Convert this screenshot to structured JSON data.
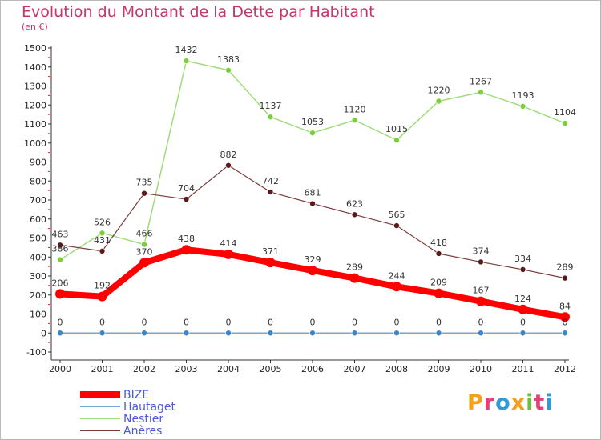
{
  "title": "Evolution du Montant de la Dette par Habitant",
  "subtitle": "(en €)",
  "brand": {
    "text": "Proxiti",
    "letters": [
      {
        "char": "P",
        "color": "#f2a21a"
      },
      {
        "char": "r",
        "color": "#e2407a"
      },
      {
        "char": "o",
        "color": "#2f9ad6"
      },
      {
        "char": "x",
        "color": "#f2a21a"
      },
      {
        "char": "i",
        "color": "#6cbf3c"
      },
      {
        "char": "t",
        "color": "#e2407a"
      },
      {
        "char": "i",
        "color": "#2f9ad6"
      }
    ]
  },
  "chart_data": {
    "type": "line",
    "x": [
      "2000",
      "2001",
      "2002",
      "2003",
      "2004",
      "2005",
      "2006",
      "2007",
      "2008",
      "2009",
      "2010",
      "2011",
      "2012"
    ],
    "yticks": [
      -100,
      0,
      100,
      200,
      300,
      400,
      500,
      600,
      700,
      800,
      900,
      1000,
      1100,
      1200,
      1300,
      1400,
      1500
    ],
    "ylim": [
      -100,
      1500
    ],
    "grid": false,
    "legend_position": "bottom-left",
    "series": [
      {
        "name": "BIZE",
        "color": "#ff0000",
        "marker_color": "#ff0000",
        "values": [
          206,
          192,
          370,
          438,
          414,
          371,
          329,
          289,
          244,
          209,
          167,
          124,
          84
        ]
      },
      {
        "name": "Hautaget",
        "color": "#7aa7cf",
        "marker_color": "#3d86c6",
        "values": [
          0,
          0,
          0,
          0,
          0,
          0,
          0,
          0,
          0,
          0,
          0,
          0,
          0
        ]
      },
      {
        "name": "Nestier",
        "color": "#9fdc7a",
        "marker_color": "#7ccf3a",
        "values": [
          386,
          526,
          466,
          1432,
          1383,
          1137,
          1053,
          1120,
          1015,
          1220,
          1267,
          1193,
          1104
        ]
      },
      {
        "name": "Anères",
        "color": "#7a3a3a",
        "marker_color": "#5a1a1a",
        "values": [
          463,
          431,
          735,
          704,
          882,
          742,
          681,
          623,
          565,
          418,
          374,
          334,
          289
        ]
      }
    ],
    "legend_text_color": "#4a5ad8"
  }
}
